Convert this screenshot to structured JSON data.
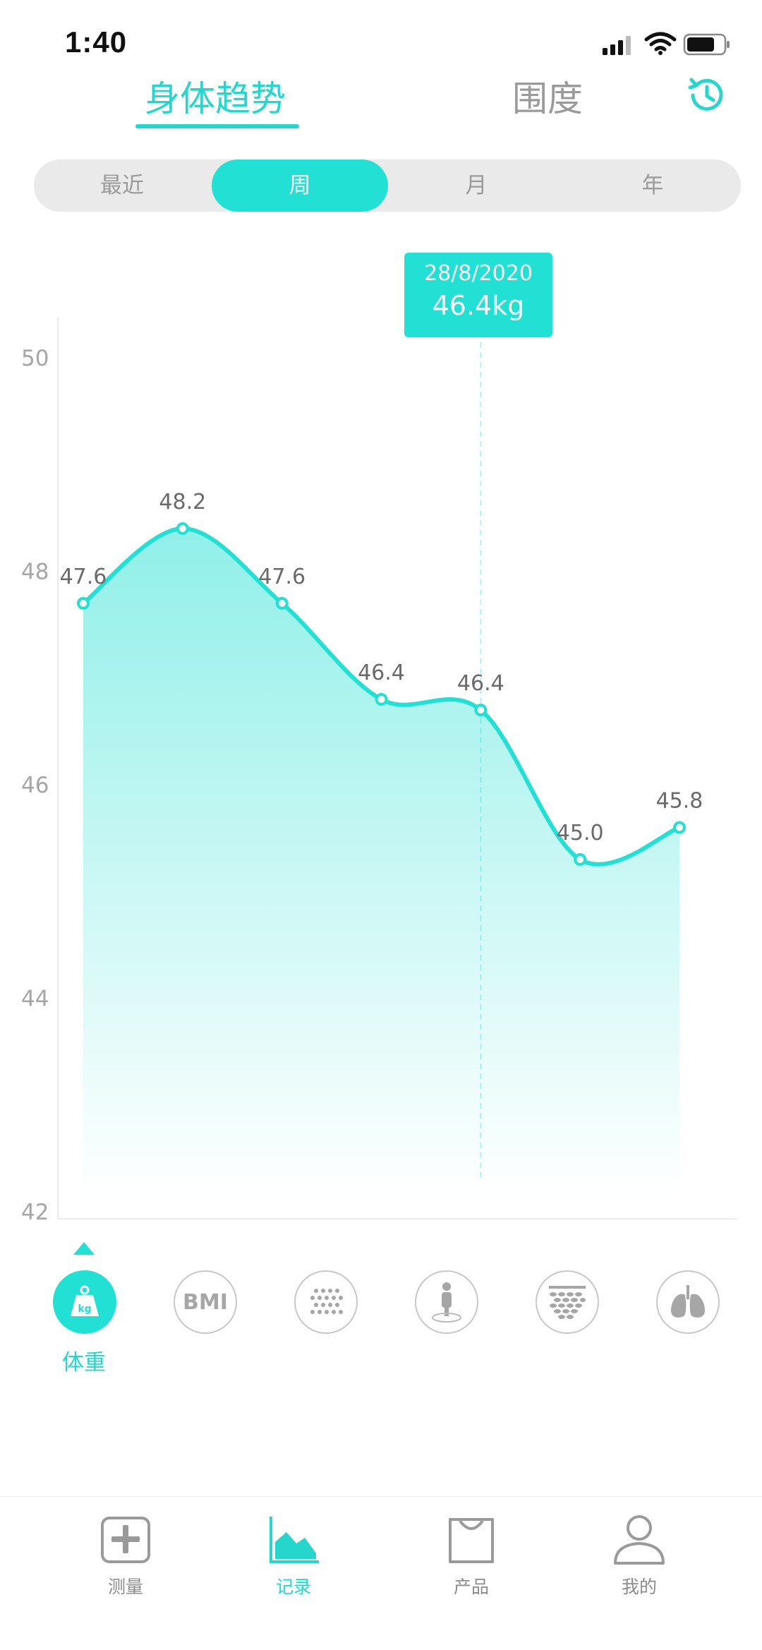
{
  "status": {
    "time": "1:40"
  },
  "tabs": {
    "trend": "身体趋势",
    "girth": "围度"
  },
  "segments": [
    {
      "label": "最近",
      "active": false
    },
    {
      "label": "周",
      "active": true
    },
    {
      "label": "月",
      "active": false
    },
    {
      "label": "年",
      "active": false
    }
  ],
  "tooltip": {
    "date": "28/8/2020",
    "value": "46.4kg"
  },
  "chart_data": {
    "type": "area",
    "ylim": [
      42,
      50
    ],
    "yticks": [
      "50",
      "48",
      "46",
      "44",
      "42"
    ],
    "series": [
      {
        "values": [
          47.6,
          48.2,
          47.6,
          46.4,
          46.4,
          45.0,
          45.8
        ]
      }
    ],
    "points_y": [
      47.7,
      48.4,
      47.7,
      46.8,
      46.7,
      45.3,
      45.6
    ],
    "labels": [
      "47.6",
      "48.2",
      "47.6",
      "46.4",
      "46.4",
      "45.0",
      "45.8"
    ],
    "grid": false,
    "color": "#22e0d3",
    "selected_index": 4
  },
  "metrics": [
    {
      "name": "weight",
      "label": "体重",
      "icon": "weight-kg-icon",
      "active": true
    },
    {
      "name": "bmi",
      "text": "BMI",
      "icon": "bmi-icon",
      "active": false
    },
    {
      "name": "body-fat",
      "icon": "dots-grid-icon",
      "active": false
    },
    {
      "name": "bone",
      "icon": "body-figure-icon",
      "active": false
    },
    {
      "name": "muscle",
      "icon": "muscle-texture-icon",
      "active": false
    },
    {
      "name": "lungs",
      "icon": "lungs-icon",
      "active": false
    }
  ],
  "bottom_nav": [
    {
      "label": "测量",
      "icon": "plus-square-icon",
      "active": false
    },
    {
      "label": "记录",
      "icon": "chart-area-icon",
      "active": true
    },
    {
      "label": "产品",
      "icon": "shopping-bag-icon",
      "active": false
    },
    {
      "label": "我的",
      "icon": "person-icon",
      "active": false
    }
  ]
}
